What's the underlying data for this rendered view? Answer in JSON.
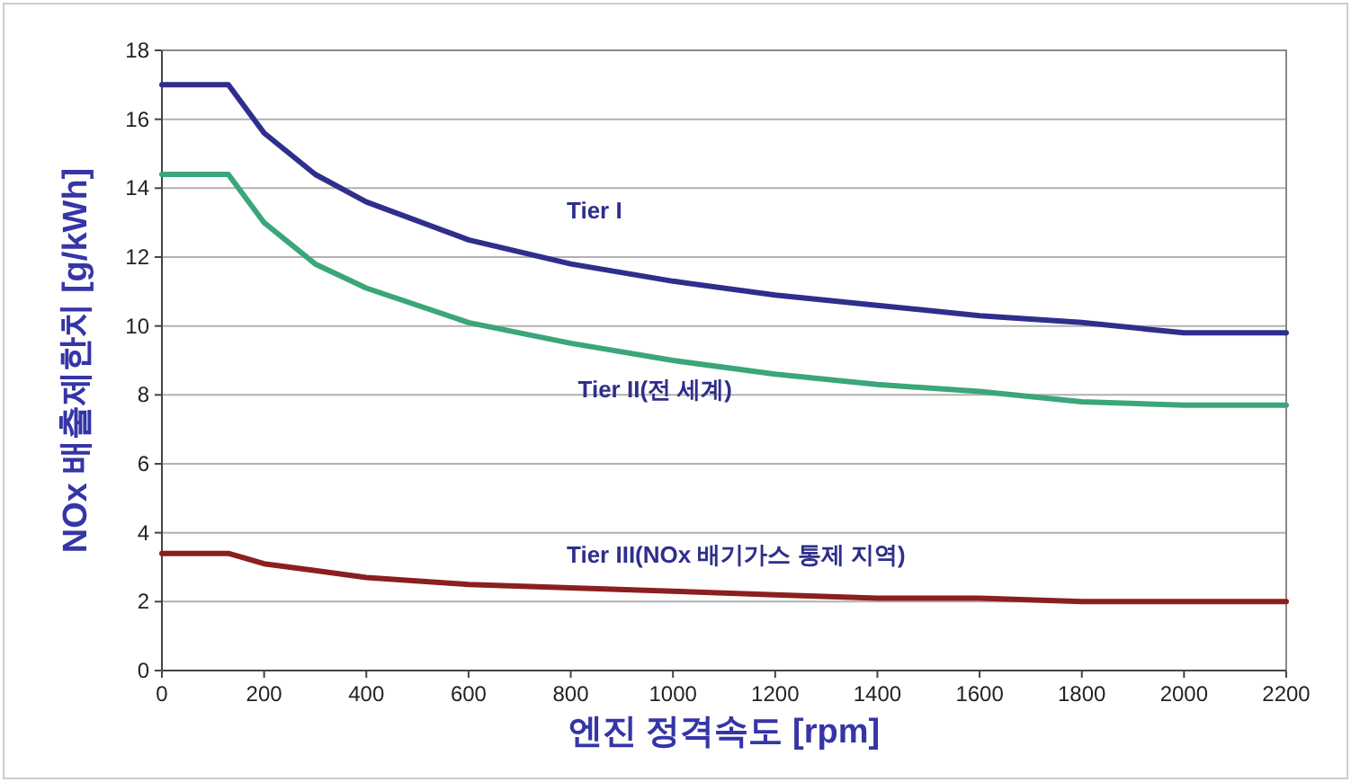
{
  "chart_data": {
    "type": "line",
    "xlabel": "엔진 정격속도 [rpm]",
    "ylabel": "NOx 배출제한치 [g/kWh]",
    "x": [
      0,
      130,
      200,
      300,
      400,
      600,
      800,
      1000,
      1200,
      1400,
      1600,
      1800,
      2000,
      2200
    ],
    "series": [
      {
        "name": "Tier I",
        "color": "#2e2f8c",
        "values": [
          17,
          17,
          15.6,
          14.4,
          13.6,
          12.5,
          11.8,
          11.3,
          10.9,
          10.6,
          10.3,
          10.1,
          9.8,
          9.8
        ]
      },
      {
        "name": "Tier II(전 세계)",
        "color": "#3aa67a",
        "values": [
          14.4,
          14.4,
          13.0,
          11.8,
          11.1,
          10.1,
          9.5,
          9.0,
          8.6,
          8.3,
          8.1,
          7.8,
          7.7,
          7.7
        ]
      },
      {
        "name": "Tier III(NOx 배기가스 통제 지역)",
        "color": "#8b1f1f",
        "values": [
          3.4,
          3.4,
          3.1,
          2.9,
          2.7,
          2.5,
          2.4,
          2.3,
          2.2,
          2.1,
          2.1,
          2.0,
          2.0,
          2.0
        ]
      }
    ],
    "xlim": [
      0,
      2200
    ],
    "ylim": [
      0,
      18
    ],
    "xticks": [
      0,
      200,
      400,
      600,
      800,
      1000,
      1200,
      1400,
      1600,
      1800,
      2000,
      2200
    ],
    "yticks": [
      0,
      2,
      4,
      6,
      8,
      10,
      12,
      14,
      16,
      18
    ],
    "grid": "y",
    "marker": "none",
    "line_style": "solid"
  }
}
